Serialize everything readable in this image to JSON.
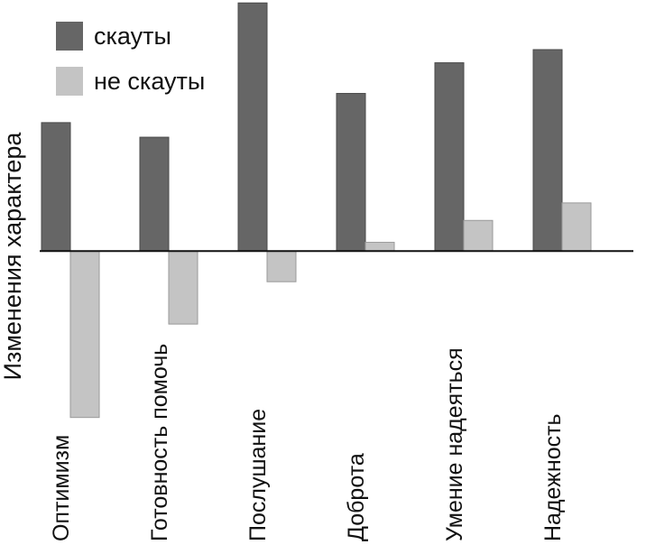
{
  "chart_data": {
    "type": "bar",
    "title": "",
    "xlabel": "",
    "ylabel": "Изменения характера",
    "categories": [
      "Оптимизм",
      "Готовность помочь",
      "Послушание",
      "Доброта",
      "Умение надеяться",
      "Надежность"
    ],
    "series": [
      {
        "name": "скауты",
        "values": [
          0.88,
          0.78,
          1.7,
          1.08,
          1.29,
          1.38
        ],
        "color": "#666666"
      },
      {
        "name": "не скауты",
        "values": [
          -1.14,
          -0.5,
          -0.21,
          0.06,
          0.21,
          0.33
        ],
        "color": "#c4c4c4"
      }
    ],
    "ylim": [
      -1.55,
      1.72
    ],
    "grid": false,
    "axis_line": "zero line only",
    "legend_position": "top-left",
    "tick_label_rotation": -90
  }
}
